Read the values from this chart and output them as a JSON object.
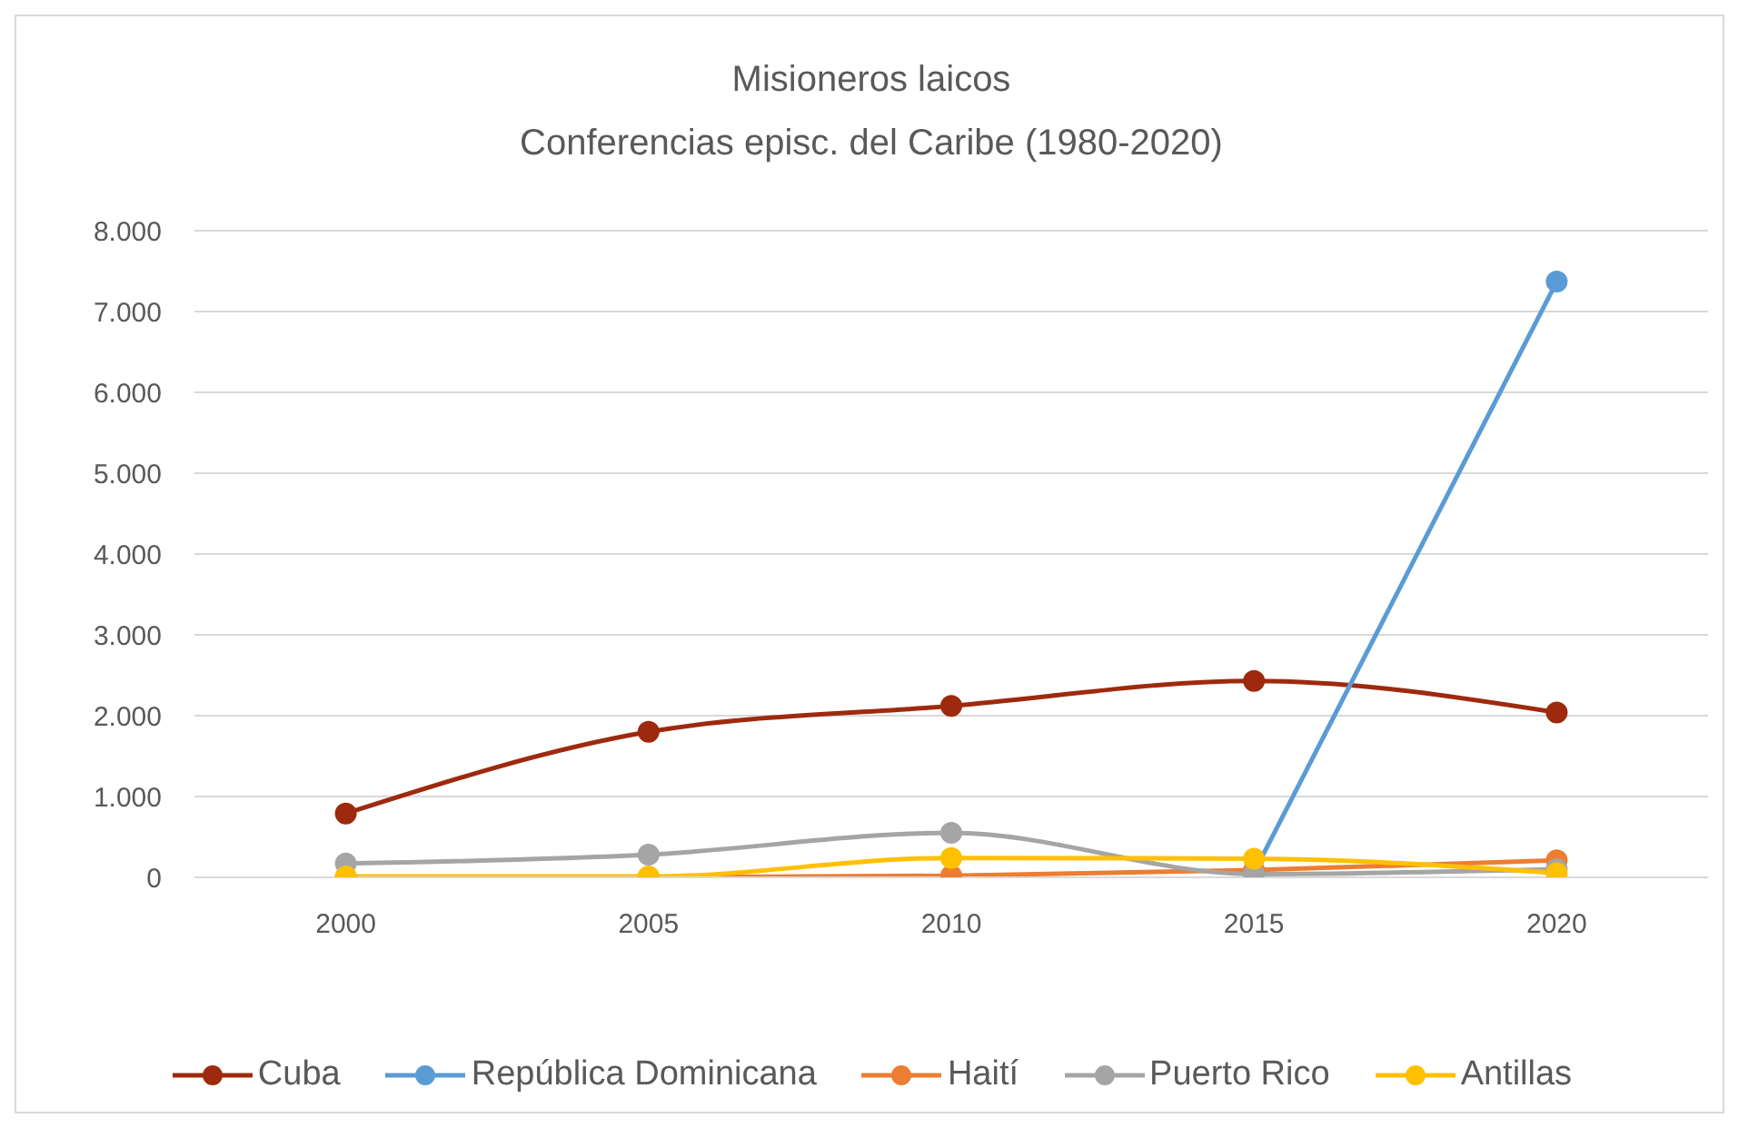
{
  "chart_data": {
    "type": "line",
    "title": "Misioneros laicos",
    "subtitle": "Conferencias episc. del Caribe (1980-2020)",
    "categories": [
      "2000",
      "2005",
      "2010",
      "2015",
      "2020"
    ],
    "series": [
      {
        "name": "Cuba",
        "color": "#9e2a0e",
        "values": [
          790,
          1800,
          2120,
          2430,
          2040
        ]
      },
      {
        "name": "República Dominicana",
        "color": "#5b9bd5",
        "values": [
          null,
          null,
          null,
          60,
          7370
        ]
      },
      {
        "name": "Haití",
        "color": "#ed7d31",
        "values": [
          0,
          0,
          20,
          90,
          210
        ]
      },
      {
        "name": "Puerto Rico",
        "color": "#a5a5a5",
        "values": [
          170,
          280,
          550,
          40,
          100
        ]
      },
      {
        "name": "Antillas",
        "color": "#ffc000",
        "values": [
          10,
          10,
          240,
          230,
          50
        ]
      }
    ],
    "ylim": [
      0,
      8000
    ],
    "yticks": [
      0,
      {
        "value": 1000,
        "label": "1.000"
      },
      {
        "value": 2000,
        "label": "2.000"
      },
      {
        "value": 3000,
        "label": "3.000"
      },
      {
        "value": 4000,
        "label": "4.000"
      },
      {
        "value": 5000,
        "label": "5.000"
      },
      {
        "value": 6000,
        "label": "6.000"
      },
      {
        "value": 7000,
        "label": "7.000"
      },
      {
        "value": 8000,
        "label": "8.000"
      }
    ],
    "grid": "y",
    "legend": "bottom",
    "marker": "circle"
  }
}
